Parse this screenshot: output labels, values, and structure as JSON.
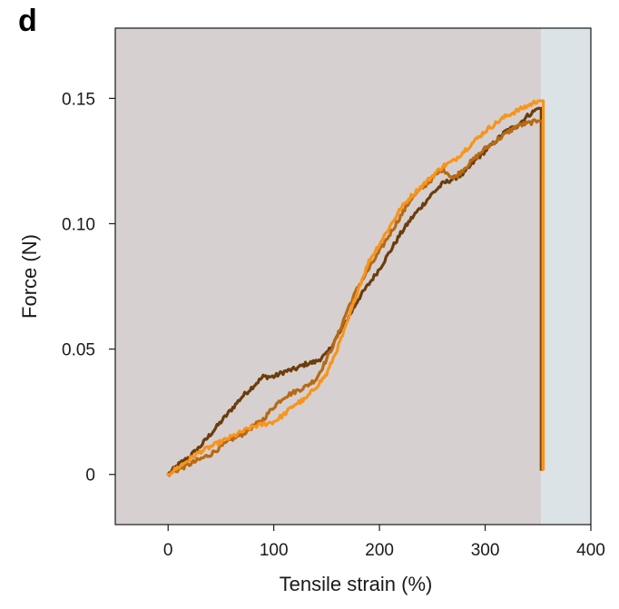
{
  "panel_label": "d",
  "chart_data": {
    "type": "line",
    "title": "",
    "xlabel": "Tensile strain (%)",
    "ylabel": "Force (N)",
    "xlim": [
      -50,
      400
    ],
    "ylim": [
      -0.02,
      0.178
    ],
    "x_ticks": [
      0,
      100,
      200,
      300,
      400
    ],
    "x_tick_labels": [
      "0",
      "100",
      "200",
      "300",
      "400"
    ],
    "y_ticks": [
      0,
      0.05,
      0.1,
      0.15
    ],
    "y_tick_labels": [
      "0",
      "0.05",
      "0.10",
      "0.15"
    ],
    "grid": false,
    "background_regions": [
      {
        "x_from": -50,
        "x_to": 353,
        "color": "#d6d0d0"
      },
      {
        "x_from": 353,
        "x_to": 400,
        "color": "#dce3e6"
      }
    ],
    "series": [
      {
        "color": "#6b3d0c",
        "x": [
          0,
          10,
          20,
          30,
          40,
          50,
          60,
          70,
          80,
          90,
          100,
          110,
          120,
          130,
          140,
          150,
          160,
          170,
          180,
          190,
          200,
          210,
          220,
          230,
          240,
          250,
          260,
          270,
          280,
          290,
          300,
          310,
          320,
          330,
          340,
          350
        ],
        "y": [
          0.0,
          0.004,
          0.007,
          0.011,
          0.016,
          0.021,
          0.026,
          0.031,
          0.035,
          0.039,
          0.039,
          0.041,
          0.042,
          0.044,
          0.045,
          0.048,
          0.055,
          0.062,
          0.07,
          0.076,
          0.082,
          0.089,
          0.096,
          0.102,
          0.107,
          0.112,
          0.116,
          0.118,
          0.12,
          0.125,
          0.129,
          0.133,
          0.137,
          0.139,
          0.143,
          0.146
        ],
        "drop_to_x": 353,
        "drop_to_y": 0.002
      },
      {
        "color": "#b86914",
        "x": [
          0,
          10,
          20,
          30,
          40,
          50,
          60,
          70,
          80,
          90,
          100,
          110,
          120,
          130,
          140,
          150,
          160,
          170,
          180,
          190,
          200,
          210,
          220,
          230,
          240,
          250,
          260,
          270,
          280,
          290,
          300,
          310,
          320,
          330,
          340,
          350
        ],
        "y": [
          0.0,
          0.002,
          0.004,
          0.006,
          0.008,
          0.011,
          0.014,
          0.016,
          0.019,
          0.022,
          0.027,
          0.031,
          0.033,
          0.035,
          0.038,
          0.046,
          0.055,
          0.066,
          0.075,
          0.082,
          0.089,
          0.096,
          0.103,
          0.11,
          0.114,
          0.118,
          0.122,
          0.118,
          0.122,
          0.126,
          0.13,
          0.133,
          0.136,
          0.139,
          0.14,
          0.141
        ],
        "drop_to_x": 354,
        "drop_to_y": 0.002
      },
      {
        "color": "#f7941d",
        "x": [
          0,
          10,
          20,
          30,
          40,
          50,
          60,
          70,
          80,
          90,
          100,
          110,
          120,
          130,
          140,
          150,
          160,
          170,
          180,
          190,
          200,
          210,
          220,
          230,
          240,
          250,
          260,
          270,
          280,
          290,
          300,
          310,
          320,
          330,
          340,
          350
        ],
        "y": [
          0.0,
          0.003,
          0.006,
          0.009,
          0.011,
          0.013,
          0.015,
          0.017,
          0.019,
          0.02,
          0.021,
          0.024,
          0.028,
          0.03,
          0.035,
          0.04,
          0.05,
          0.061,
          0.074,
          0.085,
          0.092,
          0.099,
          0.106,
          0.111,
          0.115,
          0.119,
          0.123,
          0.125,
          0.129,
          0.133,
          0.137,
          0.14,
          0.143,
          0.145,
          0.147,
          0.149
        ],
        "drop_to_x": 355,
        "drop_to_y": 0.002
      }
    ]
  }
}
